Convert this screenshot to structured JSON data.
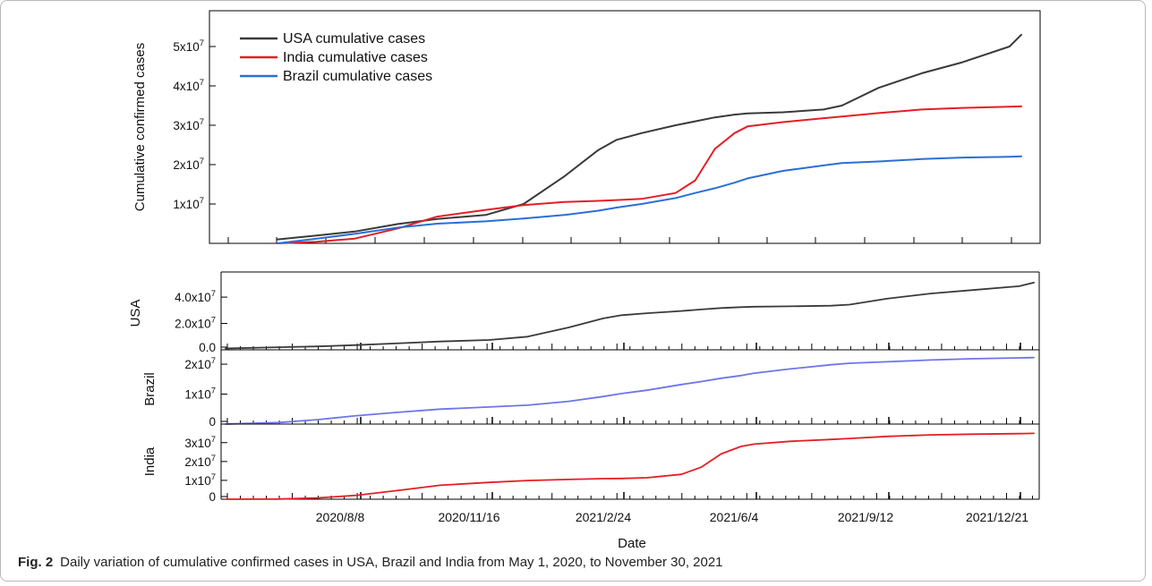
{
  "caption": {
    "label": "Fig. 2",
    "text": "Daily variation of cumulative confirmed cases in USA, Brazil and India from May 1, 2020, to November 30, 2021"
  },
  "colors": {
    "usa": "#3a3a3a",
    "india": "#e41e26",
    "brazil": "#2b6fd6",
    "brazil_panel": "#6f74ea"
  },
  "chart_data": [
    {
      "type": "line",
      "title": "",
      "xlabel": "",
      "ylabel": "Cumulative  confirmed cases",
      "x_range": [
        "2020-05-01",
        "2022-01-05"
      ],
      "ylim": [
        0,
        55000000
      ],
      "y_ticks": [
        {
          "value": 10000000,
          "label": "1x10",
          "exp": "7"
        },
        {
          "value": 20000000,
          "label": "2x10",
          "exp": "7"
        },
        {
          "value": 30000000,
          "label": "3x10",
          "exp": "7"
        },
        {
          "value": 40000000,
          "label": "4x10",
          "exp": "7"
        },
        {
          "value": 50000000,
          "label": "5x10",
          "exp": "7"
        }
      ],
      "legend_position": "top-left",
      "grid": false,
      "x": [
        "2020-06-10",
        "2020-07-10",
        "2020-08-08",
        "2020-09-10",
        "2020-10-10",
        "2020-11-16",
        "2020-12-15",
        "2021-01-15",
        "2021-02-10",
        "2021-02-24",
        "2021-03-15",
        "2021-04-10",
        "2021-04-25",
        "2021-05-10",
        "2021-05-25",
        "2021-06-04",
        "2021-07-01",
        "2021-08-01",
        "2021-08-15",
        "2021-09-12",
        "2021-10-15",
        "2021-11-15",
        "2021-12-21",
        "2021-12-30"
      ],
      "series": [
        {
          "name": "USA cumulative cases",
          "color_key": "usa",
          "values": [
            1000000,
            2000000,
            3000000,
            4900000,
            6200000,
            7200000,
            10000000,
            17000000,
            23700000,
            26300000,
            28000000,
            30000000,
            31000000,
            32000000,
            32700000,
            33000000,
            33300000,
            34000000,
            35000000,
            39500000,
            43200000,
            46000000,
            50000000,
            53000000
          ]
        },
        {
          "name": "India cumulative cases",
          "color_key": "india",
          "values": [
            0,
            400000,
            1200000,
            3800000,
            6800000,
            8500000,
            9700000,
            10500000,
            10800000,
            11000000,
            11300000,
            12800000,
            16000000,
            24000000,
            28000000,
            29700000,
            30800000,
            31800000,
            32200000,
            33100000,
            34000000,
            34400000,
            34700000,
            34800000
          ]
        },
        {
          "name": "Brazil cumulative cases",
          "color_key": "brazil",
          "values": [
            0,
            1200000,
            2400000,
            4000000,
            5000000,
            5600000,
            6300000,
            7200000,
            8300000,
            9100000,
            10000000,
            11500000,
            12800000,
            14000000,
            15400000,
            16500000,
            18400000,
            19800000,
            20400000,
            20800000,
            21400000,
            21800000,
            22000000,
            22100000
          ]
        }
      ]
    },
    {
      "type": "line",
      "title": "",
      "xlabel": "",
      "ylabel": "USA",
      "x_range": [
        "2020-05-01",
        "2022-01-05"
      ],
      "ylim": [
        0,
        55000000
      ],
      "y_ticks": [
        {
          "value": 0,
          "label": "0.0",
          "exp": ""
        },
        {
          "value": 20000000,
          "label": "2.0x10",
          "exp": "7"
        },
        {
          "value": 40000000,
          "label": "4.0x10",
          "exp": "7"
        }
      ],
      "x": [
        "2020-05-01",
        "2020-06-10",
        "2020-07-10",
        "2020-08-08",
        "2020-09-10",
        "2020-10-10",
        "2020-11-16",
        "2020-12-15",
        "2021-01-15",
        "2021-02-10",
        "2021-02-24",
        "2021-03-15",
        "2021-04-10",
        "2021-04-25",
        "2021-05-10",
        "2021-05-25",
        "2021-06-04",
        "2021-07-01",
        "2021-08-01",
        "2021-08-15",
        "2021-09-12",
        "2021-10-15",
        "2021-11-15",
        "2021-12-21",
        "2022-01-01"
      ],
      "series": [
        {
          "name": "",
          "color_key": "usa",
          "values": [
            1000000,
            2000000,
            2600000,
            3600000,
            5000000,
            6300000,
            7500000,
            10000000,
            17000000,
            23800000,
            26300000,
            27800000,
            29500000,
            30600000,
            31700000,
            32400000,
            32700000,
            33000000,
            33500000,
            34300000,
            38800000,
            42700000,
            45300000,
            48300000,
            51000000
          ]
        }
      ]
    },
    {
      "type": "line",
      "title": "",
      "xlabel": "",
      "ylabel": "Brazil",
      "x_range": [
        "2020-05-01",
        "2022-01-05"
      ],
      "ylim": [
        0,
        23000000
      ],
      "y_ticks": [
        {
          "value": 0,
          "label": "0",
          "exp": ""
        },
        {
          "value": 10000000,
          "label": "1x10",
          "exp": "7"
        },
        {
          "value": 20000000,
          "label": "2x10",
          "exp": "7"
        }
      ],
      "x": [
        "2020-05-01",
        "2020-06-10",
        "2020-07-10",
        "2020-08-08",
        "2020-09-10",
        "2020-10-10",
        "2020-11-16",
        "2020-12-15",
        "2021-01-15",
        "2021-02-10",
        "2021-02-24",
        "2021-03-15",
        "2021-04-10",
        "2021-04-25",
        "2021-05-10",
        "2021-05-25",
        "2021-06-04",
        "2021-07-01",
        "2021-08-01",
        "2021-08-15",
        "2021-09-12",
        "2021-10-15",
        "2021-11-15",
        "2021-12-21",
        "2022-01-01"
      ],
      "series": [
        {
          "name": "",
          "color_key": "brazil_panel",
          "values": [
            0,
            500000,
            1500000,
            2800000,
            4000000,
            5000000,
            5700000,
            6300000,
            7600000,
            9200000,
            10200000,
            11300000,
            13200000,
            14200000,
            15300000,
            16200000,
            17000000,
            18400000,
            19800000,
            20300000,
            20800000,
            21400000,
            21800000,
            22100000,
            22200000
          ]
        }
      ]
    },
    {
      "type": "line",
      "title": "",
      "xlabel": "Date",
      "ylabel": "India",
      "x_range": [
        "2020-05-01",
        "2022-01-05"
      ],
      "ylim": [
        0,
        37000000
      ],
      "y_ticks": [
        {
          "value": 0,
          "label": "0",
          "exp": ""
        },
        {
          "value": 10000000,
          "label": "1x10",
          "exp": "7"
        },
        {
          "value": 20000000,
          "label": "2x10",
          "exp": "7"
        },
        {
          "value": 30000000,
          "label": "3x10",
          "exp": "7"
        }
      ],
      "x_tick_labels": [
        "2020/8/8",
        "2020/11/16",
        "2021/2/24",
        "2021/6/4",
        "2021/9/12",
        "2021/12/21"
      ],
      "x": [
        "2020-05-01",
        "2020-06-10",
        "2020-07-10",
        "2020-08-08",
        "2020-09-10",
        "2020-10-10",
        "2020-11-16",
        "2020-12-15",
        "2021-01-15",
        "2021-02-10",
        "2021-02-24",
        "2021-03-15",
        "2021-04-10",
        "2021-04-25",
        "2021-05-10",
        "2021-05-25",
        "2021-06-04",
        "2021-07-01",
        "2021-08-01",
        "2021-08-15",
        "2021-09-12",
        "2021-10-15",
        "2021-11-15",
        "2021-12-21",
        "2022-01-01"
      ],
      "series": [
        {
          "name": "",
          "color_key": "india",
          "values": [
            0,
            100000,
            700000,
            2100000,
            4800000,
            7400000,
            8900000,
            9900000,
            10500000,
            10900000,
            11000000,
            11400000,
            13200000,
            17000000,
            24000000,
            28000000,
            29200000,
            30700000,
            31700000,
            32200000,
            33300000,
            34100000,
            34500000,
            34750000,
            34900000
          ]
        }
      ]
    }
  ]
}
